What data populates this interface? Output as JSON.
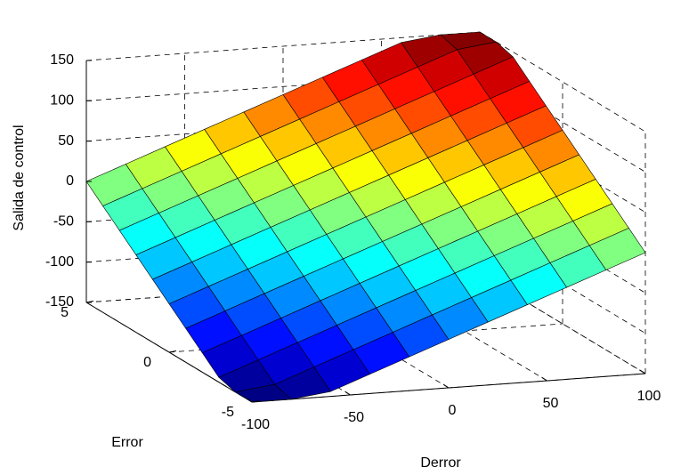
{
  "chart_data": {
    "type": "surface",
    "xlabel": "Derror",
    "ylabel": "Error",
    "zlabel": "Salida de control",
    "x": [
      -100,
      -80,
      -60,
      -40,
      -20,
      0,
      20,
      40,
      60,
      80,
      100
    ],
    "y": [
      -5,
      -4,
      -3,
      -2,
      -1,
      0,
      1,
      2,
      3,
      4,
      5
    ],
    "z": [
      [
        -150,
        -150,
        -144,
        -126,
        -108,
        -90,
        -72,
        -54,
        -36,
        -18,
        0
      ],
      [
        -150,
        -144,
        -126,
        -108,
        -90,
        -72,
        -54,
        -36,
        -18,
        0,
        18
      ],
      [
        -144,
        -126,
        -108,
        -90,
        -72,
        -54,
        -36,
        -18,
        0,
        18,
        36
      ],
      [
        -126,
        -108,
        -90,
        -72,
        -54,
        -36,
        -18,
        0,
        18,
        36,
        54
      ],
      [
        -108,
        -90,
        -72,
        -54,
        -36,
        -18,
        0,
        18,
        36,
        54,
        72
      ],
      [
        -90,
        -72,
        -54,
        -36,
        -18,
        0,
        18,
        36,
        54,
        72,
        90
      ],
      [
        -72,
        -54,
        -36,
        -18,
        0,
        18,
        36,
        54,
        72,
        90,
        108
      ],
      [
        -54,
        -36,
        -18,
        0,
        18,
        36,
        54,
        72,
        90,
        108,
        126
      ],
      [
        -36,
        -18,
        0,
        18,
        36,
        54,
        72,
        90,
        108,
        126,
        144
      ],
      [
        -18,
        0,
        18,
        36,
        54,
        72,
        90,
        108,
        126,
        144,
        150
      ],
      [
        0,
        18,
        36,
        54,
        72,
        90,
        108,
        126,
        144,
        150,
        150
      ]
    ],
    "xlim": [
      -100,
      100
    ],
    "ylim": [
      -5,
      5
    ],
    "zlim": [
      -150,
      150
    ],
    "xticks": [
      -100,
      -50,
      0,
      50,
      100
    ],
    "yticks": [
      -5,
      0,
      5
    ],
    "zticks": [
      -150,
      -100,
      -50,
      0,
      50,
      100,
      150
    ],
    "colormap": "jet",
    "grid": true
  }
}
